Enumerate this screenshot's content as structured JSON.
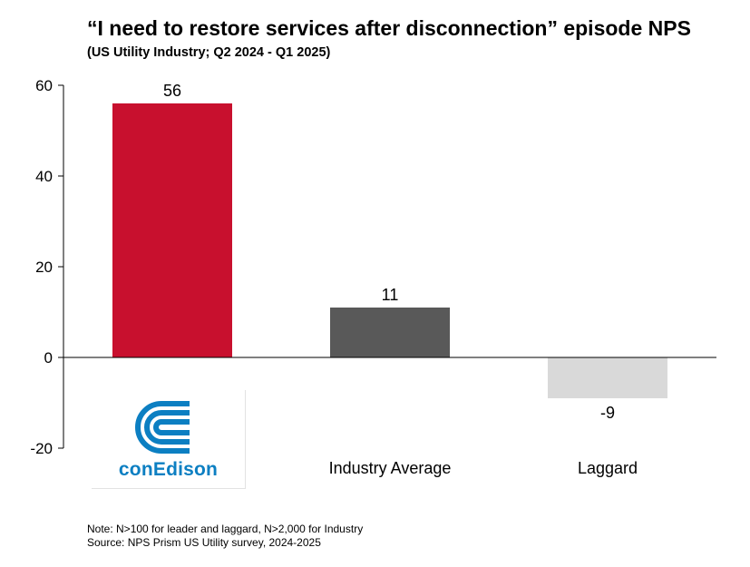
{
  "title": "“I need to restore services after disconnection” episode NPS",
  "subtitle": "(US Utility Industry; Q2 2024 - Q1 2025)",
  "chart_data": {
    "type": "bar",
    "categories": [
      "conEdison",
      "Industry Average",
      "Laggard"
    ],
    "values": [
      56,
      11,
      -9
    ],
    "value_labels": [
      "56",
      "11",
      "-9"
    ],
    "colors": [
      "#c8102e",
      "#595959",
      "#d9d9d9"
    ],
    "ylim": [
      -20,
      60
    ],
    "yticks": [
      60,
      40,
      20,
      0,
      -20
    ],
    "ytick_labels": [
      "60",
      "40",
      "20",
      "0",
      "-20"
    ],
    "grid": false,
    "legend": "none"
  },
  "logo": {
    "text": "conEdison",
    "icon": "conedison-logo-icon",
    "color": "#0c7fc2"
  },
  "notes": [
    "Note: N>100 for leader and laggard, N>2,000 for Industry",
    "Source: NPS Prism US Utility survey, 2024-2025"
  ]
}
